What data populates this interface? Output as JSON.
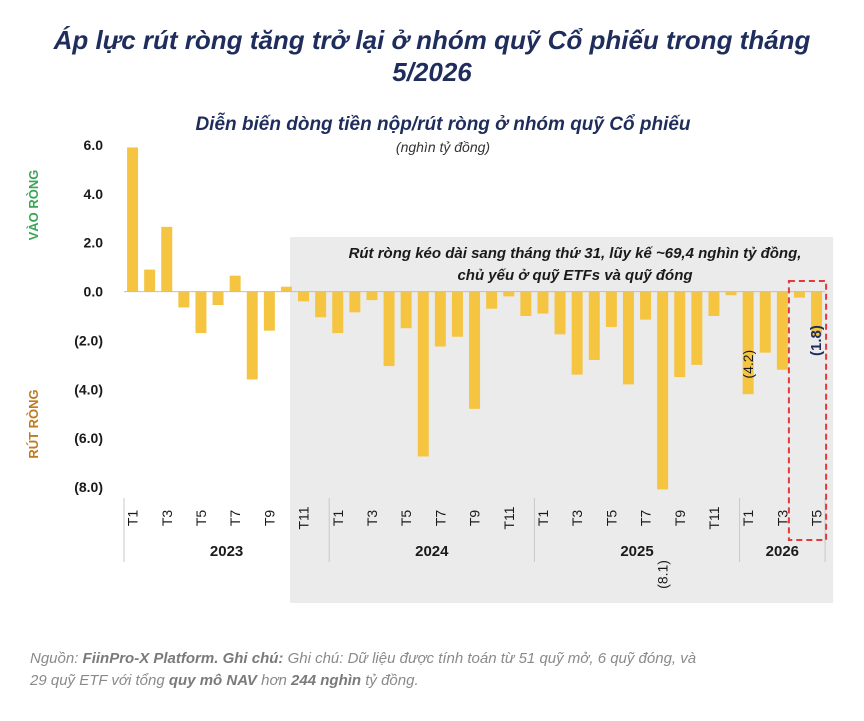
{
  "title": {
    "line1": "Áp lực rút ròng tăng trở lại ở nhóm quỹ Cổ phiếu trong tháng",
    "line2": "5/2026"
  },
  "colors": {
    "bar": "#f5c542",
    "title": "#1f2d5c",
    "inflow_label": "#3aa655",
    "outflow_label": "#c07a1e",
    "highlight": "#e03a3a",
    "shade": "#ebebeb"
  },
  "chart_data": {
    "type": "bar",
    "title": "Diễn biến dòng tiền nộp/rút ròng ở nhóm quỹ Cổ phiếu",
    "subtitle": "(nghìn tỷ đồng)",
    "ylabel_top": "VÀO RÒNG",
    "ylabel_bottom": "RÚT RÒNG",
    "ylim": [
      -8,
      6
    ],
    "yticks": [
      {
        "value": 6,
        "label": "6.0"
      },
      {
        "value": 4,
        "label": "4.0"
      },
      {
        "value": 2,
        "label": "2.0"
      },
      {
        "value": 0,
        "label": "0.0"
      },
      {
        "value": -2,
        "label": "(2.0)"
      },
      {
        "value": -4,
        "label": "(4.0)"
      },
      {
        "value": -6,
        "label": "(6.0)"
      },
      {
        "value": -8,
        "label": "(8.0)"
      }
    ],
    "categories": [
      "T1",
      "T2",
      "T3",
      "T4",
      "T5",
      "T6",
      "T7",
      "T8",
      "T9",
      "T10",
      "T11",
      "T12",
      "T1",
      "T2",
      "T3",
      "T4",
      "T5",
      "T6",
      "T7",
      "T8",
      "T9",
      "T10",
      "T11",
      "T12",
      "T1",
      "T2",
      "T3",
      "T4",
      "T5",
      "T6",
      "T7",
      "T8",
      "T9",
      "T10",
      "T11",
      "T12",
      "T1",
      "T2",
      "T3",
      "T4",
      "T5"
    ],
    "tick_labels": [
      "T1",
      "",
      "T3",
      "",
      "T5",
      "",
      "T7",
      "",
      "T9",
      "",
      "T11",
      "",
      "T1",
      "",
      "T3",
      "",
      "T5",
      "",
      "T7",
      "",
      "T9",
      "",
      "T11",
      "",
      "T1",
      "",
      "T3",
      "",
      "T5",
      "",
      "T7",
      "",
      "T9",
      "",
      "T11",
      "",
      "T1",
      "",
      "T3",
      "",
      "T5"
    ],
    "values": [
      5.9,
      0.9,
      2.65,
      -0.65,
      -1.7,
      -0.55,
      0.65,
      -3.6,
      -1.6,
      0.2,
      -0.4,
      -1.05,
      -1.7,
      -0.85,
      -0.35,
      -3.05,
      -1.5,
      -6.75,
      -2.25,
      -1.85,
      -4.8,
      -0.7,
      -0.2,
      -1.0,
      -0.9,
      -1.75,
      -3.4,
      -2.8,
      -1.45,
      -3.8,
      -1.15,
      -8.1,
      -3.5,
      -3.0,
      -1.0,
      -0.15,
      -4.2,
      -2.5,
      -3.2,
      -0.25,
      -1.8
    ],
    "years": [
      {
        "label": "2023",
        "start": 0,
        "end": 11
      },
      {
        "label": "2024",
        "start": 12,
        "end": 23
      },
      {
        "label": "2025",
        "start": 24,
        "end": 35
      },
      {
        "label": "2026",
        "start": 36,
        "end": 40
      }
    ],
    "data_labels": [
      {
        "index": 31,
        "text": "(8.1)"
      },
      {
        "index": 36,
        "text": "(4.2)"
      },
      {
        "index": 40,
        "text": "(1.8)"
      }
    ],
    "annotation": {
      "line1": "Rút ròng kéo dài sang tháng thứ 31, lũy kế ~69,4 nghìn tỷ đồng,",
      "line2": "chủ yếu ở  quỹ ETFs và quỹ đóng"
    },
    "grid": false,
    "legend": "none"
  },
  "footnote": {
    "source_label": "Nguồn:",
    "source_value": "FiinPro-X Platform.",
    "note_label": "Ghi chú:",
    "note_text_1": "Ghi chú: Dữ liệu được tính toán từ 51 quỹ mở, 6 quỹ đóng, và",
    "note_text_2": "29 quỹ ETF với tổng",
    "nav_label": "quy mô NAV",
    "nav_mid": "hơn",
    "nav_value": "244 nghìn",
    "nav_tail": "tỷ đồng."
  }
}
